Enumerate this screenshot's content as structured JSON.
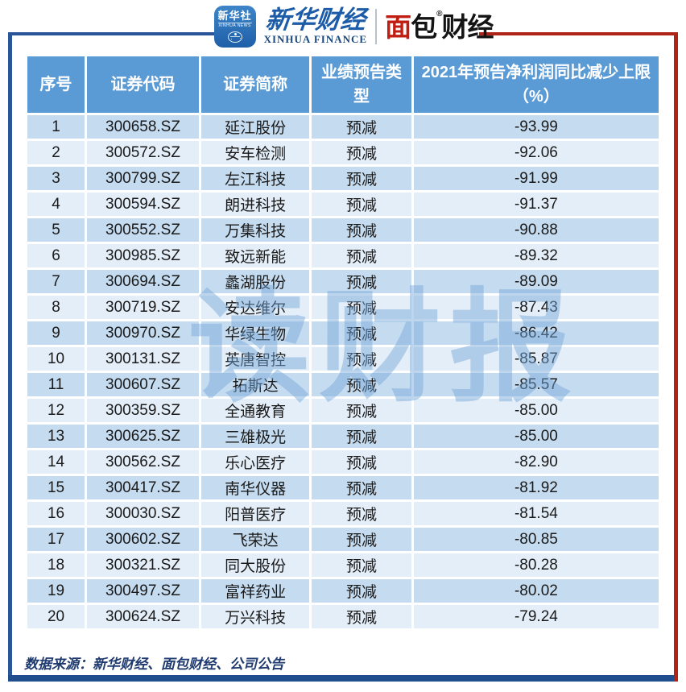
{
  "header": {
    "xinhua_badge": {
      "cn": "新华社",
      "en": "XINHUA NEWS"
    },
    "xinhua_finance": {
      "cn": "新华财经",
      "en": "XINHUA FINANCE"
    },
    "mianbao": {
      "cn_red": "面",
      "cn_mid": "包",
      "reg": "®",
      "cn_rest": "财经"
    }
  },
  "watermark": "读财报",
  "footer": {
    "source": "数据来源：新华财经、面包财经、公司公告"
  },
  "colors": {
    "header_blue": "#5B9BD5",
    "row_odd": "#C5DBEF",
    "row_even": "#E4EEF8",
    "frame_blue": "#2A5699",
    "frame_red": "#B02418",
    "bottom_bar": "#1F4E8F",
    "footer_text": "#1F3A6E",
    "cell_text": "#1A1A1A"
  },
  "chart_data": {
    "type": "table",
    "columns": [
      "序号",
      "证券代码",
      "证券简称",
      "业绩预告类型",
      "2021年预告净利润同比减少上限（%）"
    ],
    "rows": [
      [
        "1",
        "300658.SZ",
        "延江股份",
        "预减",
        "-93.99"
      ],
      [
        "2",
        "300572.SZ",
        "安车检测",
        "预减",
        "-92.06"
      ],
      [
        "3",
        "300799.SZ",
        "左江科技",
        "预减",
        "-91.99"
      ],
      [
        "4",
        "300594.SZ",
        "朗进科技",
        "预减",
        "-91.37"
      ],
      [
        "5",
        "300552.SZ",
        "万集科技",
        "预减",
        "-90.88"
      ],
      [
        "6",
        "300985.SZ",
        "致远新能",
        "预减",
        "-89.32"
      ],
      [
        "7",
        "300694.SZ",
        "蠡湖股份",
        "预减",
        "-89.09"
      ],
      [
        "8",
        "300719.SZ",
        "安达维尔",
        "预减",
        "-87.43"
      ],
      [
        "9",
        "300970.SZ",
        "华绿生物",
        "预减",
        "-86.42"
      ],
      [
        "10",
        "300131.SZ",
        "英唐智控",
        "预减",
        "-85.87"
      ],
      [
        "11",
        "300607.SZ",
        "拓斯达",
        "预减",
        "-85.57"
      ],
      [
        "12",
        "300359.SZ",
        "全通教育",
        "预减",
        "-85.00"
      ],
      [
        "13",
        "300625.SZ",
        "三雄极光",
        "预减",
        "-85.00"
      ],
      [
        "14",
        "300562.SZ",
        "乐心医疗",
        "预减",
        "-82.90"
      ],
      [
        "15",
        "300417.SZ",
        "南华仪器",
        "预减",
        "-81.92"
      ],
      [
        "16",
        "300030.SZ",
        "阳普医疗",
        "预减",
        "-81.54"
      ],
      [
        "17",
        "300602.SZ",
        "飞荣达",
        "预减",
        "-80.85"
      ],
      [
        "18",
        "300321.SZ",
        "同大股份",
        "预减",
        "-80.28"
      ],
      [
        "19",
        "300497.SZ",
        "富祥药业",
        "预减",
        "-80.02"
      ],
      [
        "20",
        "300624.SZ",
        "万兴科技",
        "预减",
        "-79.24"
      ]
    ]
  }
}
